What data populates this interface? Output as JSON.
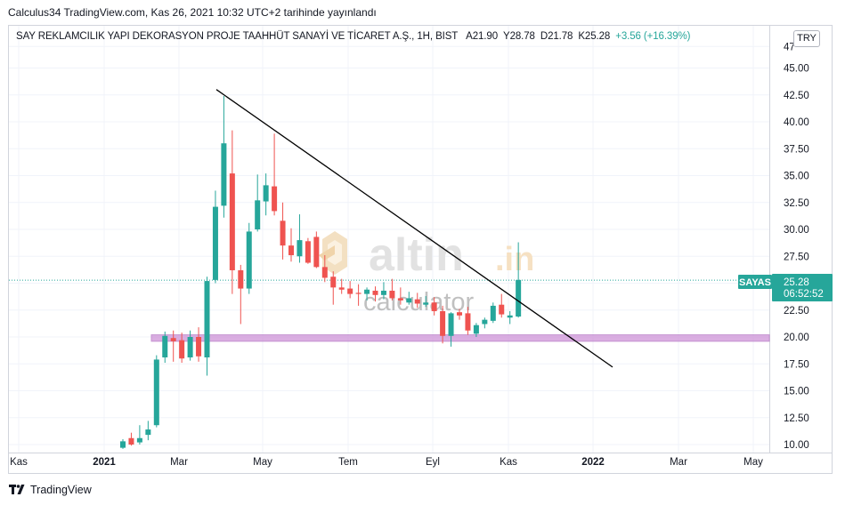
{
  "header": {
    "published_line": "Calculus34 TradingView.com, Kas 26, 2021 10:32 UTC+2 tarihinde yayınlandı"
  },
  "legend": {
    "symbol": "SAY REKLAMCILIK YAPI DEKORASYON PROJE TAAHHÜT SANAYİ VE TİCARET A.Ş., 1H, BIST",
    "open": "A21.90",
    "high": "Y28.78",
    "low": "D21.78",
    "close": "K25.28",
    "change": "+3.56 (+16.39%)"
  },
  "currency_badge": "TRY",
  "price_label": {
    "ticker": "SAYAS",
    "price": "25.28",
    "countdown": "06:52:52"
  },
  "watermark": {
    "brand": "altin",
    "brand_suffix": ".in",
    "sub": "calculator"
  },
  "footer": {
    "brand": "TradingView"
  },
  "colors": {
    "up": "#26a69a",
    "down": "#ef5350",
    "support_band": "#ce93d8",
    "trendline": "#000000",
    "price_label_bg": "#26a69a"
  },
  "chart_data": {
    "type": "candlestick",
    "interval": "1H",
    "ylim": [
      9.6,
      47.5
    ],
    "y_ticks": [
      "10.00",
      "12.50",
      "15.00",
      "17.50",
      "20.00",
      "22.50",
      "25.00",
      "27.50",
      "30.00",
      "32.50",
      "35.00",
      "37.50",
      "40.00",
      "42.50",
      "45.00",
      "47"
    ],
    "x_ticks": [
      "Kas",
      "2021",
      "Mar",
      "May",
      "Tem",
      "Eyl",
      "Kas",
      "2022",
      "Mar",
      "May"
    ],
    "current_price": 25.28,
    "support_band": [
      19.6,
      20.2
    ],
    "trendline": {
      "from": [
        0,
        43.0
      ],
      "to": [
        1,
        17.2
      ]
    },
    "candles": [
      {
        "o": 9.7,
        "h": 10.5,
        "l": 9.6,
        "c": 10.3
      },
      {
        "o": 10.6,
        "h": 11.1,
        "l": 9.9,
        "c": 10.0
      },
      {
        "o": 10.2,
        "h": 11.8,
        "l": 10.0,
        "c": 10.6
      },
      {
        "o": 10.9,
        "h": 12.2,
        "l": 10.4,
        "c": 11.4
      },
      {
        "o": 11.8,
        "h": 18.3,
        "l": 11.6,
        "c": 17.9
      },
      {
        "o": 18.1,
        "h": 20.5,
        "l": 17.6,
        "c": 20.1
      },
      {
        "o": 19.9,
        "h": 20.6,
        "l": 17.7,
        "c": 19.6
      },
      {
        "o": 19.7,
        "h": 20.4,
        "l": 17.6,
        "c": 18.0
      },
      {
        "o": 18.1,
        "h": 20.6,
        "l": 17.8,
        "c": 20.0
      },
      {
        "o": 20.0,
        "h": 20.9,
        "l": 17.7,
        "c": 18.2
      },
      {
        "o": 18.1,
        "h": 25.6,
        "l": 16.4,
        "c": 25.2
      },
      {
        "o": 25.3,
        "h": 33.6,
        "l": 25.0,
        "c": 32.1
      },
      {
        "o": 32.2,
        "h": 42.4,
        "l": 31.1,
        "c": 38.0
      },
      {
        "o": 35.2,
        "h": 39.2,
        "l": 24.0,
        "c": 26.2
      },
      {
        "o": 26.2,
        "h": 26.7,
        "l": 21.2,
        "c": 24.5
      },
      {
        "o": 24.5,
        "h": 30.6,
        "l": 24.0,
        "c": 29.8
      },
      {
        "o": 30.0,
        "h": 35.1,
        "l": 29.8,
        "c": 32.7
      },
      {
        "o": 32.6,
        "h": 35.2,
        "l": 31.3,
        "c": 34.1
      },
      {
        "o": 34.0,
        "h": 38.9,
        "l": 31.3,
        "c": 31.7
      },
      {
        "o": 30.8,
        "h": 32.5,
        "l": 27.2,
        "c": 28.5
      },
      {
        "o": 28.5,
        "h": 30.1,
        "l": 27.0,
        "c": 27.6
      },
      {
        "o": 27.5,
        "h": 31.4,
        "l": 26.9,
        "c": 29.0
      },
      {
        "o": 28.9,
        "h": 29.2,
        "l": 26.8,
        "c": 26.9
      },
      {
        "o": 29.3,
        "h": 29.8,
        "l": 26.4,
        "c": 26.5
      },
      {
        "o": 26.5,
        "h": 27.6,
        "l": 25.1,
        "c": 25.5
      },
      {
        "o": 25.6,
        "h": 26.1,
        "l": 23.0,
        "c": 24.6
      },
      {
        "o": 24.6,
        "h": 25.4,
        "l": 24.0,
        "c": 24.4
      },
      {
        "o": 24.5,
        "h": 25.2,
        "l": 23.6,
        "c": 24.0
      },
      {
        "o": 24.1,
        "h": 24.9,
        "l": 22.9,
        "c": 24.0
      },
      {
        "o": 24.0,
        "h": 24.6,
        "l": 23.4,
        "c": 24.4
      },
      {
        "o": 24.3,
        "h": 24.7,
        "l": 23.3,
        "c": 23.9
      },
      {
        "o": 23.9,
        "h": 25.1,
        "l": 23.5,
        "c": 24.3
      },
      {
        "o": 24.3,
        "h": 25.4,
        "l": 23.4,
        "c": 23.6
      },
      {
        "o": 23.6,
        "h": 24.6,
        "l": 23.0,
        "c": 23.4
      },
      {
        "o": 23.2,
        "h": 24.2,
        "l": 23.0,
        "c": 23.6
      },
      {
        "o": 23.5,
        "h": 24.1,
        "l": 22.7,
        "c": 23.1
      },
      {
        "o": 23.0,
        "h": 23.8,
        "l": 22.8,
        "c": 23.2
      },
      {
        "o": 23.2,
        "h": 23.7,
        "l": 22.0,
        "c": 22.4
      },
      {
        "o": 22.4,
        "h": 22.9,
        "l": 19.4,
        "c": 20.1
      },
      {
        "o": 20.1,
        "h": 22.3,
        "l": 19.1,
        "c": 22.2
      },
      {
        "o": 22.3,
        "h": 22.6,
        "l": 21.6,
        "c": 22.0
      },
      {
        "o": 22.2,
        "h": 22.8,
        "l": 20.2,
        "c": 20.6
      },
      {
        "o": 20.3,
        "h": 21.3,
        "l": 20.0,
        "c": 21.1
      },
      {
        "o": 21.2,
        "h": 21.8,
        "l": 20.8,
        "c": 21.6
      },
      {
        "o": 21.5,
        "h": 23.2,
        "l": 21.3,
        "c": 22.9
      },
      {
        "o": 23.0,
        "h": 24.0,
        "l": 21.8,
        "c": 22.1
      },
      {
        "o": 21.8,
        "h": 22.4,
        "l": 21.2,
        "c": 22.0
      },
      {
        "o": 21.9,
        "h": 28.8,
        "l": 21.8,
        "c": 25.3
      }
    ]
  }
}
